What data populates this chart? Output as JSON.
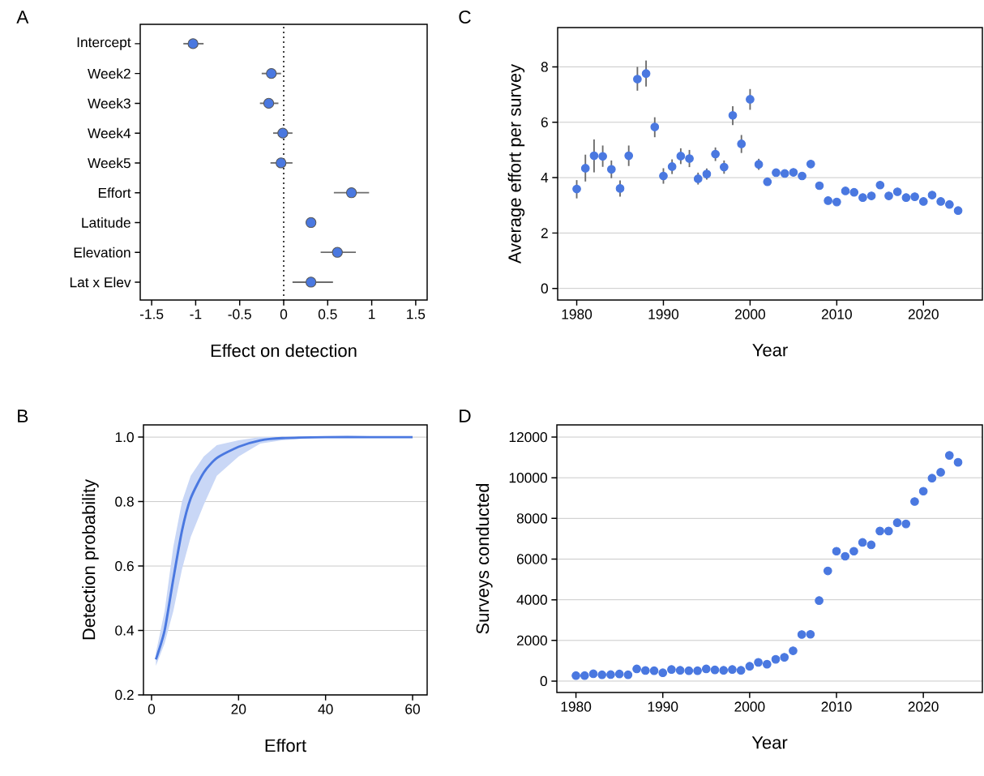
{
  "chart_data": [
    {
      "type": "scatter",
      "title": "A",
      "orientation": "horizontal",
      "xlabel": "Effect on detection",
      "categories": [
        "Intercept",
        "Week2",
        "Week3",
        "Week4",
        "Week5",
        "Effort",
        "Latitude",
        "Elevation",
        "Lat x Elev"
      ],
      "values": [
        -1.03,
        -0.14,
        -0.17,
        -0.01,
        -0.03,
        0.77,
        0.31,
        0.61,
        0.31
      ],
      "errors": [
        [
          -1.14,
          -0.91
        ],
        [
          -0.25,
          -0.03
        ],
        [
          -0.27,
          -0.06
        ],
        [
          -0.12,
          0.1
        ],
        [
          -0.15,
          0.1
        ],
        [
          0.57,
          0.97
        ],
        null,
        [
          0.42,
          0.82
        ],
        [
          0.1,
          0.56
        ]
      ],
      "color": "#4a78e0",
      "xlim": [
        -1.63,
        1.63
      ],
      "xticks": [
        -1.5,
        -1,
        -0.5,
        0,
        0.5,
        1,
        1.5
      ],
      "ref_lines": [
        {
          "axis": "x",
          "value": 0,
          "line_style": "dotted",
          "color": "#000000"
        }
      ]
    },
    {
      "type": "scatter",
      "title": "C",
      "xlabel": "Year",
      "ylabel": "Average effort per survey",
      "x": [
        1980,
        1981,
        1982,
        1983,
        1984,
        1985,
        1986,
        1987,
        1988,
        1989,
        1990,
        1991,
        1992,
        1993,
        1994,
        1995,
        1996,
        1997,
        1998,
        1999,
        2000,
        2001,
        2002,
        2003,
        2004,
        2005,
        2006,
        2007,
        2008,
        2009,
        2010,
        2011,
        2012,
        2013,
        2014,
        2015,
        2016,
        2017,
        2018,
        2019,
        2020,
        2021,
        2022,
        2023,
        2024
      ],
      "values": [
        3.59,
        4.34,
        4.79,
        4.77,
        4.3,
        3.61,
        4.79,
        7.56,
        7.76,
        5.83,
        4.06,
        4.4,
        4.78,
        4.69,
        3.96,
        4.13,
        4.85,
        4.38,
        6.25,
        5.22,
        6.83,
        4.48,
        3.85,
        4.18,
        4.15,
        4.19,
        4.06,
        4.49,
        3.71,
        3.17,
        3.12,
        3.52,
        3.47,
        3.28,
        3.34,
        3.73,
        3.34,
        3.49,
        3.28,
        3.31,
        3.14,
        3.37,
        3.14,
        3.03,
        2.81
      ],
      "errors": [
        [
          3.25,
          3.91
        ],
        [
          3.86,
          4.83
        ],
        [
          4.19,
          5.38
        ],
        [
          4.39,
          5.16
        ],
        [
          3.98,
          4.62
        ],
        [
          3.31,
          3.9
        ],
        [
          4.42,
          5.16
        ],
        [
          7.14,
          8.0
        ],
        [
          7.29,
          8.23
        ],
        [
          5.46,
          6.18
        ],
        [
          3.78,
          4.34
        ],
        [
          4.13,
          4.66
        ],
        [
          4.49,
          5.06
        ],
        [
          4.38,
          5.0
        ],
        [
          3.75,
          4.18
        ],
        [
          3.93,
          4.33
        ],
        [
          4.6,
          5.09
        ],
        [
          4.14,
          4.62
        ],
        [
          5.9,
          6.58
        ],
        [
          4.89,
          5.54
        ],
        [
          6.45,
          7.2
        ],
        [
          4.28,
          4.68
        ],
        null,
        null,
        null,
        null,
        null,
        null,
        null,
        null,
        null,
        null,
        null,
        null,
        null,
        null,
        null,
        null,
        null,
        null,
        null,
        null,
        null,
        null,
        null
      ],
      "color": "#4a78e0",
      "grid": "y",
      "xlim": [
        1977.8,
        2026.8
      ],
      "ylim": [
        -0.42,
        9.42
      ],
      "xticks": [
        1980,
        1990,
        2000,
        2010,
        2020
      ],
      "yticks": [
        0,
        2,
        4,
        6,
        8
      ]
    },
    {
      "type": "line",
      "title": "B",
      "xlabel": "Effort",
      "ylabel": "Detection probability",
      "x": [
        1,
        3,
        5,
        7,
        9,
        12,
        15,
        20,
        25,
        30,
        40,
        50,
        60
      ],
      "series": [
        {
          "color": "#4a78e0",
          "values": [
            0.31,
            0.4,
            0.56,
            0.71,
            0.81,
            0.89,
            0.935,
            0.97,
            0.99,
            0.997,
            1.0,
            1.0,
            1.0
          ],
          "lower": [
            0.29,
            0.36,
            0.46,
            0.59,
            0.69,
            0.79,
            0.88,
            0.94,
            0.98,
            0.99,
            1.0,
            1.0,
            1.0
          ],
          "upper": [
            0.33,
            0.46,
            0.66,
            0.8,
            0.88,
            0.94,
            0.975,
            0.99,
            1.0,
            1.0,
            1.0,
            1.0,
            1.0
          ]
        }
      ],
      "grid": "y",
      "xlim": [
        -1.86,
        63.35
      ],
      "ylim": [
        0.2,
        1.038
      ],
      "xticks": [
        0,
        20,
        40,
        60
      ],
      "yticks": [
        0.2,
        0.4,
        0.6,
        0.8,
        {
          "value": 1,
          "label": "1.0"
        }
      ]
    },
    {
      "type": "scatter",
      "title": "D",
      "xlabel": "Year",
      "ylabel": "Surveys conducted",
      "x": [
        1980,
        1981,
        1982,
        1983,
        1984,
        1985,
        1986,
        1987,
        1988,
        1989,
        1990,
        1991,
        1992,
        1993,
        1994,
        1995,
        1996,
        1997,
        1998,
        1999,
        2000,
        2001,
        2002,
        2003,
        2004,
        2005,
        2006,
        2007,
        2008,
        2009,
        2010,
        2011,
        2012,
        2013,
        2014,
        2015,
        2016,
        2017,
        2018,
        2019,
        2020,
        2021,
        2022,
        2023,
        2024
      ],
      "values": [
        270,
        270,
        360,
        310,
        320,
        350,
        310,
        600,
        520,
        510,
        410,
        570,
        530,
        510,
        510,
        600,
        550,
        530,
        570,
        530,
        730,
        920,
        830,
        1070,
        1170,
        1490,
        2290,
        2300,
        3960,
        5420,
        6390,
        6140,
        6390,
        6820,
        6700,
        7380,
        7380,
        7790,
        7730,
        8830,
        9340,
        9980,
        10270,
        11100,
        10760
      ],
      "color": "#4a78e0",
      "grid": "y",
      "xlim": [
        1977.8,
        2026.8
      ],
      "ylim": [
        -560,
        12600
      ],
      "xticks": [
        1980,
        1990,
        2000,
        2010,
        2020
      ],
      "yticks": [
        0,
        2000,
        4000,
        6000,
        8000,
        10000,
        12000
      ]
    }
  ]
}
